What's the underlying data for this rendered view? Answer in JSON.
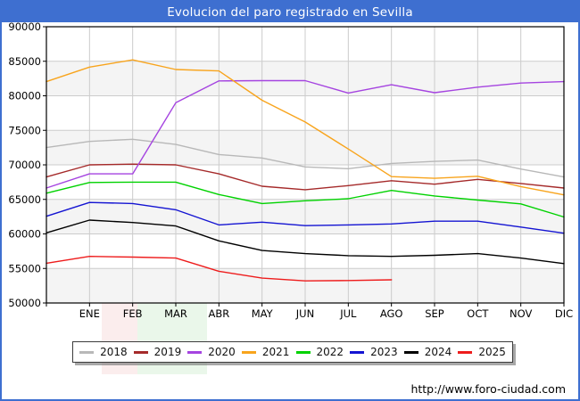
{
  "title": "Evolucion del paro registrado en Sevilla",
  "footer": {
    "url": "http://www.foro-ciudad.com"
  },
  "colors": {
    "frame_blue": "#3e6fd0",
    "title_text": "#ffffff",
    "grid": "#cccccc",
    "band_gray": "#f4f4f4",
    "plot_border": "#000000",
    "tick_label": "#000000"
  },
  "chart_data": {
    "type": "line",
    "title": "Evolucion del paro registrado en Sevilla",
    "xlabel": "",
    "ylabel": "",
    "ylim": [
      50000,
      90000
    ],
    "ytick_step": 5000,
    "y_tick_labels": [
      "90000",
      "85000",
      "80000",
      "75000",
      "70000",
      "65000",
      "60000",
      "55000",
      "50000"
    ],
    "x_tick_labels": [
      "ENE",
      "FEB",
      "MAR",
      "ABR",
      "MAY",
      "JUN",
      "JUL",
      "AGO",
      "SEP",
      "OCT",
      "NOV",
      "DIC"
    ],
    "x_points_note": "13 evenly spaced vertices per full series: previous December at the left edge, then ENE..DIC at each gridline; 2025 runs only through AGO.",
    "grid": true,
    "legend_position": "bottom",
    "series": [
      {
        "name": "2018",
        "color": "#b8b8b8",
        "values": [
          72500,
          73400,
          73700,
          72950,
          71500,
          71000,
          69700,
          69450,
          70200,
          70500,
          70700,
          69400,
          68250
        ]
      },
      {
        "name": "2019",
        "color": "#a52a2a",
        "values": [
          68250,
          70000,
          70100,
          70000,
          68700,
          66900,
          66400,
          67000,
          67700,
          67200,
          67900,
          67300,
          66650
        ]
      },
      {
        "name": "2020",
        "color": "#a544e0",
        "values": [
          66650,
          68700,
          68700,
          79000,
          82150,
          82200,
          82200,
          80400,
          81600,
          80450,
          81250,
          81850,
          82050
        ]
      },
      {
        "name": "2021",
        "color": "#f8a41c",
        "values": [
          82050,
          84150,
          85200,
          83800,
          83600,
          79350,
          76200,
          72300,
          68300,
          68050,
          68350,
          66850,
          65650
        ]
      },
      {
        "name": "2022",
        "color": "#00d200",
        "values": [
          65900,
          67450,
          67500,
          67500,
          65700,
          64400,
          64800,
          65100,
          66300,
          65500,
          64900,
          64350,
          62450
        ]
      },
      {
        "name": "2023",
        "color": "#1414d2",
        "values": [
          62550,
          64550,
          64400,
          63500,
          61300,
          61700,
          61200,
          61300,
          61450,
          61850,
          61850,
          61000,
          60100
        ]
      },
      {
        "name": "2024",
        "color": "#000000",
        "values": [
          60150,
          62000,
          61650,
          61150,
          59000,
          57600,
          57150,
          56850,
          56750,
          56900,
          57150,
          56500,
          55700
        ]
      },
      {
        "name": "2025",
        "color": "#ee1c1c",
        "values": [
          55750,
          56750,
          56650,
          56500,
          54600,
          53600,
          53200,
          53250,
          53350
        ]
      }
    ]
  }
}
